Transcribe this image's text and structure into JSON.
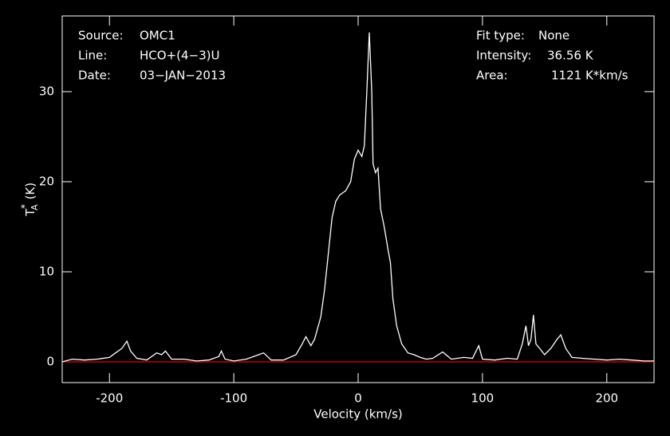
{
  "chart_data": {
    "type": "line",
    "xlabel": "Velocity (km/s)",
    "ylabel": {
      "main": "T",
      "sub": "A",
      "sup": "*",
      "unit": "(K)"
    },
    "annotations_left": [
      [
        "Source:",
        "OMC1"
      ],
      [
        "Line:",
        "HCO+(4−3)U"
      ],
      [
        "Date:",
        "03−JAN−2013"
      ]
    ],
    "annotations_right": [
      [
        "Fit type:",
        "None"
      ],
      [
        "Intensity:",
        "36.56 K"
      ],
      [
        "Area:",
        "1121 K*km/s"
      ]
    ],
    "x": [
      -238,
      -230,
      -220,
      -210,
      -200,
      -195,
      -190,
      -186,
      -183,
      -178,
      -170,
      -162,
      -158,
      -155,
      -150,
      -140,
      -130,
      -120,
      -112,
      -110,
      -107,
      -100,
      -90,
      -80,
      -76,
      -70,
      -60,
      -50,
      -45,
      -42,
      -38,
      -35,
      -30,
      -27,
      -24,
      -21,
      -18,
      -15,
      -10,
      -6,
      -3,
      0,
      3,
      5,
      7,
      9,
      11,
      12,
      14,
      16,
      18,
      21,
      24,
      26,
      28,
      31,
      35,
      40,
      45,
      50,
      55,
      60,
      68,
      75,
      85,
      92,
      97,
      100,
      110,
      120,
      128,
      132,
      135,
      137,
      139,
      141,
      143,
      146,
      150,
      155,
      160,
      163,
      167,
      172,
      180,
      190,
      200,
      210,
      220,
      230,
      238
    ],
    "values": [
      0,
      0.3,
      0.2,
      0.3,
      0.5,
      1.0,
      1.5,
      2.3,
      1.2,
      0.4,
      0.2,
      1.0,
      0.8,
      1.2,
      0.3,
      0.3,
      0.1,
      0.2,
      0.6,
      1.2,
      0.3,
      0.1,
      0.3,
      0.8,
      1.0,
      0.2,
      0.2,
      0.8,
      2.0,
      2.8,
      1.8,
      2.5,
      5,
      8,
      12,
      16,
      17.8,
      18.5,
      19,
      20,
      22.5,
      23.5,
      22.8,
      24,
      30,
      36.56,
      30,
      22,
      21,
      21.5,
      17,
      15,
      12.5,
      11,
      7,
      4,
      2,
      1.0,
      0.8,
      0.5,
      0.3,
      0.4,
      1.1,
      0.3,
      0.5,
      0.4,
      1.8,
      0.3,
      0.2,
      0.4,
      0.3,
      2.0,
      4.0,
      1.8,
      2.5,
      5.2,
      2.0,
      1.5,
      0.8,
      1.5,
      2.5,
      3.0,
      1.5,
      0.5,
      0.4,
      0.3,
      0.2,
      0.3,
      0.2,
      0.1,
      0.1
    ],
    "color": "#ffffff",
    "baseline": 0,
    "baseline_color": "#c00000",
    "xlim": [
      -238,
      238
    ],
    "xticks": [
      -200,
      -100,
      0,
      100,
      200
    ],
    "ylim": [
      -2.3,
      38.4
    ],
    "yticks": [
      0,
      10,
      20,
      30
    ]
  }
}
